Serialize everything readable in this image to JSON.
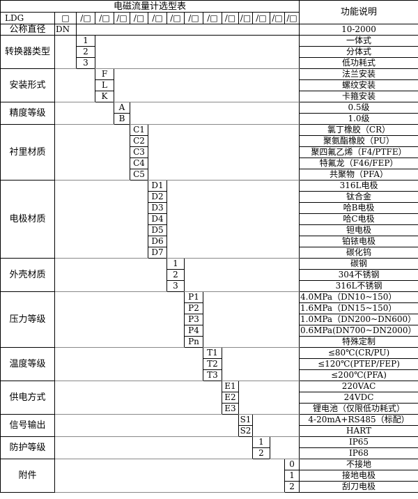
{
  "title": "电磁流量计选型表",
  "function_header": "功能说明",
  "model_row": {
    "prefix": "LDG",
    "first_box": "□",
    "boxes": [
      "/□",
      "/□",
      "/□",
      "/□",
      "/□",
      "/□",
      "/□",
      "/□",
      "/□",
      "/□",
      "/□",
      "/□",
      "/□"
    ]
  },
  "nominal_diameter": {
    "label": "公称直径",
    "code": "DN",
    "desc": "10-2000"
  },
  "groups": [
    {
      "label": "转换器类型",
      "col": 0,
      "options": [
        {
          "code": "1",
          "desc": "一体式"
        },
        {
          "code": "2",
          "desc": "分体式"
        },
        {
          "code": "3",
          "desc": "低功耗式"
        }
      ]
    },
    {
      "label": "安装形式",
      "col": 1,
      "options": [
        {
          "code": "F",
          "desc": "法兰安装"
        },
        {
          "code": "L",
          "desc": "螺纹安装"
        },
        {
          "code": "K",
          "desc": "卡箍安装"
        }
      ]
    },
    {
      "label": "精度等级",
      "col": 2,
      "options": [
        {
          "code": "A",
          "desc": "0.5级"
        },
        {
          "code": "B",
          "desc": "1.0级"
        }
      ]
    },
    {
      "label": "衬里材质",
      "col": 3,
      "options": [
        {
          "code": "C1",
          "desc": "氯丁橡胶（CR）"
        },
        {
          "code": "C2",
          "desc": "聚氨酯橡胶（PU）"
        },
        {
          "code": "C3",
          "desc": "聚四氟乙烯（F4/PTFE）"
        },
        {
          "code": "C4",
          "desc": "特氟龙（F46/FEP）"
        },
        {
          "code": "C5",
          "desc": "共聚物（PFA）"
        }
      ]
    },
    {
      "label": "电极材质",
      "col": 4,
      "options": [
        {
          "code": "D1",
          "desc": "316L电极"
        },
        {
          "code": "D2",
          "desc": "钛合金"
        },
        {
          "code": "D3",
          "desc": "哈B电极"
        },
        {
          "code": "D4",
          "desc": "哈C电极"
        },
        {
          "code": "D5",
          "desc": "钽电极"
        },
        {
          "code": "D6",
          "desc": "铂铱电极"
        },
        {
          "code": "D7",
          "desc": "碳化钨"
        }
      ]
    },
    {
      "label": "外壳材质",
      "col": 5,
      "options": [
        {
          "code": "1",
          "desc": "碳钢"
        },
        {
          "code": "2",
          "desc": "304不锈钢"
        },
        {
          "code": "3",
          "desc": "316L不锈钢"
        }
      ]
    },
    {
      "label": "压力等级",
      "col": 6,
      "options": [
        {
          "code": "P1",
          "desc": "4.0MPa（DN10~150）",
          "left": true
        },
        {
          "code": "P2",
          "desc": "1.6MPa（DN15~150）",
          "left": true
        },
        {
          "code": "P3",
          "desc": "1.0MPa（DN200~DN600）",
          "left": true
        },
        {
          "code": "P4",
          "desc": "0.6MPa(DN700~DN2000）",
          "left": true
        },
        {
          "code": "Pn",
          "desc": "特殊定制"
        }
      ]
    },
    {
      "label": "温度等级",
      "col": 7,
      "options": [
        {
          "code": "T1",
          "desc": "≤80℃(CR/PU)"
        },
        {
          "code": "T2",
          "desc": "≤120℃(PTEP/FEP)"
        },
        {
          "code": "T3",
          "desc": "≤200℃(PFA)"
        }
      ]
    },
    {
      "label": "供电方式",
      "col": 8,
      "options": [
        {
          "code": "E1",
          "desc": "220VAC"
        },
        {
          "code": "E2",
          "desc": "24VDC"
        },
        {
          "code": "E3",
          "desc": "锂电池（仅限低功耗式）"
        }
      ]
    },
    {
      "label": "信号输出",
      "col": 9,
      "options": [
        {
          "code": "S1",
          "desc": "4-20mA+RS485（标配）"
        },
        {
          "code": "S2",
          "desc": "HART"
        }
      ]
    },
    {
      "label": "防护等级",
      "col": 10,
      "options": [
        {
          "code": "1",
          "desc": "IP65"
        },
        {
          "code": "2",
          "desc": "IP68"
        }
      ]
    },
    {
      "label": "附件",
      "col": 12,
      "options": [
        {
          "code": "0",
          "desc": "不接地"
        },
        {
          "code": "1",
          "desc": "接地电极"
        },
        {
          "code": "2",
          "desc": "刮刀电极"
        }
      ]
    }
  ]
}
